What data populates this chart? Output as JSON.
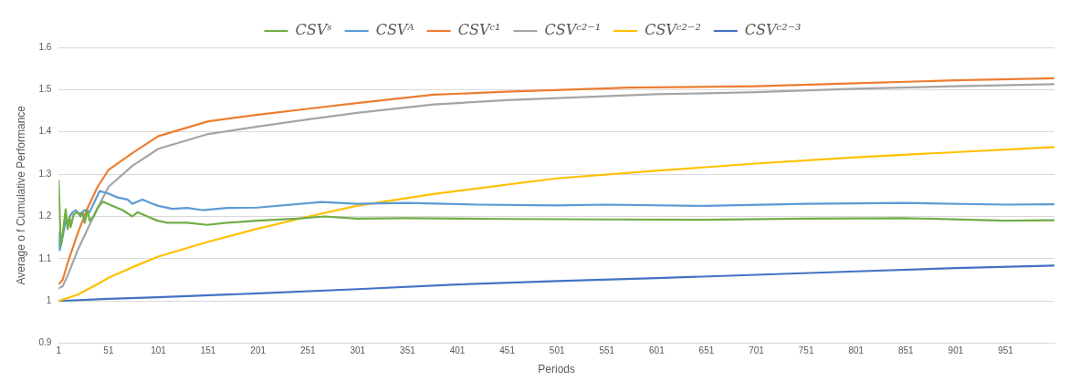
{
  "chart_data": {
    "type": "line",
    "xlabel": "Periods",
    "ylabel": "Average o f Cumulative Performance",
    "xlim": [
      1,
      1000
    ],
    "xticks": [
      1,
      51,
      101,
      151,
      201,
      251,
      301,
      351,
      401,
      451,
      501,
      551,
      601,
      651,
      701,
      751,
      801,
      851,
      901,
      951
    ],
    "ylim": [
      0.9,
      1.6
    ],
    "yticks": [
      0.9,
      1,
      1.1,
      1.2,
      1.3,
      1.4,
      1.5,
      1.6
    ],
    "grid": "y",
    "legend": "top",
    "line_style": "solid",
    "marker": "none",
    "series": [
      {
        "name": "CSVˢ",
        "color": "#70ad47",
        "x": [
          1,
          3,
          5,
          8,
          10,
          12,
          13,
          16,
          20,
          23,
          25,
          27,
          30,
          32,
          36,
          40,
          45,
          50,
          60,
          65,
          75,
          80,
          90,
          100,
          110,
          130,
          150,
          170,
          200,
          240,
          268,
          300,
          350,
          450,
          550,
          650,
          750,
          850,
          950,
          1000
        ],
        "values": [
          1.285,
          1.13,
          1.16,
          1.217,
          1.17,
          1.2,
          1.175,
          1.205,
          1.21,
          1.2,
          1.21,
          1.185,
          1.215,
          1.19,
          1.2,
          1.22,
          1.235,
          1.23,
          1.22,
          1.215,
          1.2,
          1.21,
          1.2,
          1.19,
          1.185,
          1.185,
          1.18,
          1.185,
          1.19,
          1.195,
          1.2,
          1.195,
          1.196,
          1.194,
          1.193,
          1.192,
          1.195,
          1.196,
          1.19,
          1.191
        ]
      },
      {
        "name": "CSVᴬ",
        "color": "#5b9bd5",
        "x": [
          1,
          2,
          4,
          8,
          10,
          12,
          15,
          18,
          22,
          27,
          32,
          35,
          38,
          42,
          50,
          60,
          70,
          75,
          85,
          95,
          101,
          115,
          130,
          145,
          170,
          200,
          265,
          300,
          350,
          420,
          500,
          550,
          650,
          750,
          850,
          950,
          1000
        ],
        "values": [
          1.16,
          1.12,
          1.14,
          1.19,
          1.18,
          1.2,
          1.21,
          1.215,
          1.205,
          1.215,
          1.21,
          1.225,
          1.24,
          1.26,
          1.255,
          1.245,
          1.24,
          1.23,
          1.24,
          1.23,
          1.225,
          1.218,
          1.22,
          1.215,
          1.22,
          1.221,
          1.234,
          1.23,
          1.232,
          1.228,
          1.226,
          1.228,
          1.225,
          1.23,
          1.232,
          1.228,
          1.229
        ]
      },
      {
        "name": "CSVᶜ¹",
        "color": "#ed7d31",
        "x": [
          1,
          5,
          10,
          20,
          30,
          40,
          51,
          75,
          101,
          151,
          199,
          252,
          300,
          377,
          450,
          573,
          700,
          800,
          900,
          1000
        ],
        "values": [
          1.04,
          1.05,
          1.09,
          1.16,
          1.22,
          1.27,
          1.31,
          1.35,
          1.39,
          1.425,
          1.44,
          1.455,
          1.468,
          1.488,
          1.495,
          1.505,
          1.508,
          1.515,
          1.522,
          1.527
        ]
      },
      {
        "name": "CSVᶜ²⁻¹",
        "color": "#a5a5a5",
        "x": [
          1,
          5,
          10,
          20,
          30,
          40,
          51,
          75,
          101,
          151,
          199,
          252,
          300,
          377,
          450,
          600,
          700,
          800,
          900,
          1000
        ],
        "values": [
          1.03,
          1.035,
          1.06,
          1.12,
          1.17,
          1.22,
          1.27,
          1.32,
          1.36,
          1.395,
          1.412,
          1.43,
          1.445,
          1.465,
          1.475,
          1.489,
          1.494,
          1.502,
          1.508,
          1.513
        ]
      },
      {
        "name": "CSVᶜ²⁻²",
        "color": "#ffc000",
        "x": [
          1,
          20,
          40,
          51,
          75,
          101,
          151,
          199,
          252,
          300,
          377,
          500,
          600,
          700,
          800,
          900,
          1000
        ],
        "values": [
          1.0,
          1.015,
          1.04,
          1.055,
          1.08,
          1.105,
          1.14,
          1.17,
          1.2,
          1.225,
          1.253,
          1.29,
          1.308,
          1.325,
          1.34,
          1.352,
          1.364
        ]
      },
      {
        "name": "CSVᶜ²⁻³",
        "color": "#4472c4",
        "x": [
          1,
          51,
          101,
          201,
          301,
          401,
          501,
          601,
          701,
          801,
          901,
          1000
        ],
        "values": [
          1.0,
          1.005,
          1.009,
          1.018,
          1.028,
          1.039,
          1.047,
          1.054,
          1.062,
          1.07,
          1.078,
          1.084
        ]
      }
    ]
  }
}
